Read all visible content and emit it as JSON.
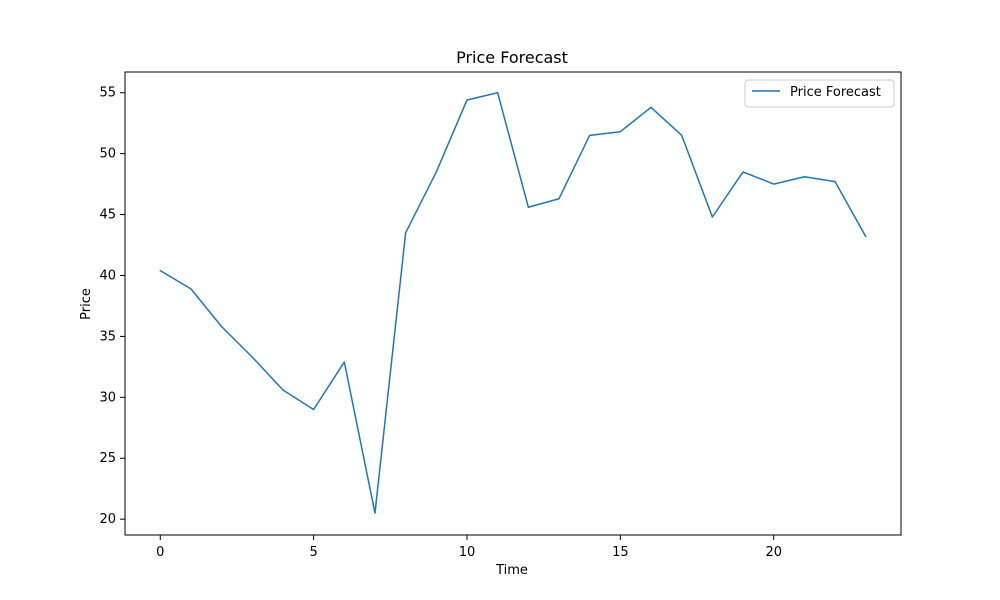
{
  "chart_data": {
    "type": "line",
    "title": "Price Forecast",
    "xlabel": "Time",
    "ylabel": "Price",
    "xlim": [
      -1.15,
      24.15
    ],
    "ylim": [
      18.7,
      56.7
    ],
    "xticks": [
      0,
      5,
      10,
      15,
      20
    ],
    "yticks": [
      20,
      25,
      30,
      35,
      40,
      45,
      50,
      55
    ],
    "grid": false,
    "legend_position": "top-right",
    "series": [
      {
        "name": "Price Forecast",
        "color": "#1f77b4",
        "x": [
          0,
          1,
          2,
          3,
          4,
          5,
          6,
          7,
          8,
          9,
          10,
          11,
          12,
          13,
          14,
          15,
          16,
          17,
          18,
          19,
          20,
          21,
          22,
          23
        ],
        "y": [
          40.4,
          38.9,
          35.8,
          33.3,
          30.6,
          29.0,
          32.9,
          20.5,
          43.5,
          48.5,
          54.4,
          55.0,
          45.6,
          46.3,
          51.5,
          51.8,
          53.8,
          51.5,
          44.8,
          48.5,
          47.5,
          48.1,
          47.7,
          43.2
        ]
      }
    ]
  }
}
